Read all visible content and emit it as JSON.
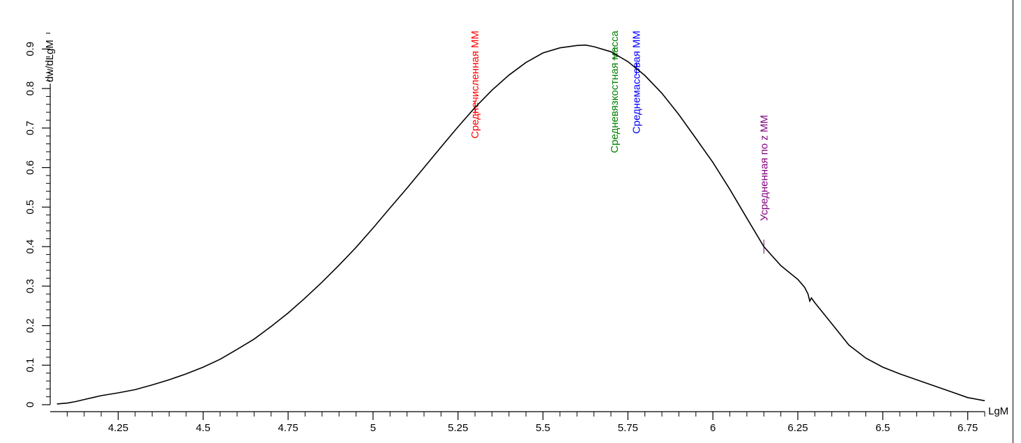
{
  "chart_data": {
    "type": "line",
    "xlabel": "LgM",
    "ylabel": "dw/dLgM",
    "xlim": [
      4.05,
      6.8
    ],
    "ylim": [
      0,
      0.95
    ],
    "x_ticks": [
      4.25,
      4.5,
      4.75,
      5,
      5.25,
      5.5,
      5.75,
      6,
      6.25,
      6.5,
      6.75
    ],
    "x_tick_labels": [
      "4.25",
      "4.5",
      "4.75",
      "5",
      "5.25",
      "5.5",
      "5.75",
      "6",
      "6.25",
      "6.5",
      "6.75"
    ],
    "y_ticks": [
      0,
      0.1,
      0.2,
      0.3,
      0.4,
      0.5,
      0.6,
      0.7,
      0.8,
      0.9
    ],
    "y_tick_labels": [
      "0",
      "0.1",
      "0.2",
      "0.3",
      "0.4",
      "0.5",
      "0.6",
      "0.7",
      "0.8",
      "0.9"
    ],
    "grid": false,
    "series": [
      {
        "color": "#000000",
        "x": [
          4.07,
          4.1,
          4.125,
          4.15,
          4.175,
          4.2,
          4.25,
          4.3,
          4.35,
          4.4,
          4.45,
          4.5,
          4.55,
          4.6,
          4.65,
          4.7,
          4.75,
          4.8,
          4.85,
          4.9,
          4.95,
          5.0,
          5.05,
          5.1,
          5.15,
          5.2,
          5.25,
          5.3,
          5.35,
          5.4,
          5.45,
          5.5,
          5.55,
          5.6,
          5.625,
          5.65,
          5.7,
          5.75,
          5.8,
          5.85,
          5.9,
          5.95,
          6.0,
          6.05,
          6.1,
          6.15,
          6.2,
          6.25,
          6.27,
          6.28,
          6.285,
          6.29,
          6.3,
          6.35,
          6.4,
          6.45,
          6.5,
          6.55,
          6.6,
          6.65,
          6.7,
          6.75,
          6.8
        ],
        "y": [
          0.002,
          0.004,
          0.008,
          0.013,
          0.018,
          0.023,
          0.03,
          0.038,
          0.05,
          0.063,
          0.078,
          0.095,
          0.115,
          0.14,
          0.166,
          0.198,
          0.232,
          0.27,
          0.31,
          0.353,
          0.398,
          0.447,
          0.498,
          0.548,
          0.6,
          0.652,
          0.703,
          0.752,
          0.796,
          0.834,
          0.866,
          0.89,
          0.903,
          0.909,
          0.91,
          0.906,
          0.893,
          0.868,
          0.833,
          0.788,
          0.734,
          0.674,
          0.613,
          0.545,
          0.472,
          0.4,
          0.352,
          0.317,
          0.297,
          0.28,
          0.262,
          0.27,
          0.258,
          0.205,
          0.151,
          0.118,
          0.095,
          0.078,
          0.063,
          0.048,
          0.033,
          0.018,
          0.01
        ]
      }
    ],
    "markers": [
      {
        "x": 5.3,
        "label": "Среднечисленная ММ",
        "color": "#ff0000"
      },
      {
        "x": 5.71,
        "label": "Средневязкостная масса",
        "color": "#008000"
      },
      {
        "x": 5.775,
        "label": "Среднемассовая ММ",
        "color": "#0000ff"
      },
      {
        "x": 6.15,
        "label": "Усредненная по z ММ",
        "color": "#800080"
      }
    ]
  }
}
